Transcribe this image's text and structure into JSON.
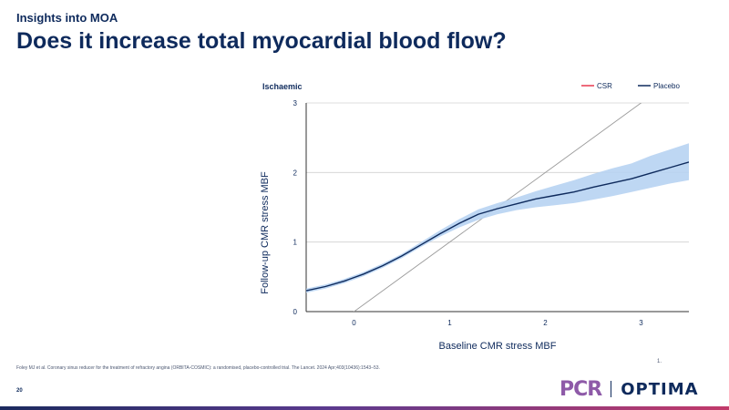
{
  "header": {
    "kicker": "Insights into MOA",
    "title": "Does it increase total myocardial blood flow?"
  },
  "chart_data": {
    "type": "line",
    "panel_label": "Ischaemic",
    "xlabel": "Baseline CMR stress MBF",
    "ylabel": "Follow-up CMR stress MBF",
    "xlim": [
      -0.5,
      3.5
    ],
    "ylim": [
      0,
      3
    ],
    "x_ticks": [
      "0",
      "1",
      "2",
      "3"
    ],
    "y_ticks": [
      "0",
      "1",
      "2",
      "3"
    ],
    "grid": "horizontal",
    "legend_position": "top-right",
    "legend": [
      {
        "name": "CSR",
        "color": "#e8384f"
      },
      {
        "name": "Placebo",
        "color": "#0e2a5c"
      }
    ],
    "identity_line": {
      "x": [
        -0.5,
        3.5
      ],
      "y": [
        -0.5,
        3.5
      ]
    },
    "series": [
      {
        "name": "Placebo",
        "color": "#0e2a5c",
        "band_color": "#b7d3f2",
        "x": [
          -0.5,
          -0.3,
          -0.1,
          0.1,
          0.3,
          0.5,
          0.7,
          0.9,
          1.1,
          1.3,
          1.5,
          1.7,
          1.9,
          2.1,
          2.3,
          2.5,
          2.7,
          2.9,
          3.1,
          3.3,
          3.5
        ],
        "y": [
          0.3,
          0.36,
          0.44,
          0.54,
          0.66,
          0.8,
          0.96,
          1.12,
          1.27,
          1.4,
          1.48,
          1.55,
          1.62,
          1.67,
          1.72,
          1.79,
          1.85,
          1.91,
          1.99,
          2.07,
          2.15
        ],
        "lower": [
          0.27,
          0.33,
          0.41,
          0.51,
          0.63,
          0.77,
          0.93,
          1.08,
          1.21,
          1.32,
          1.4,
          1.46,
          1.5,
          1.53,
          1.56,
          1.61,
          1.66,
          1.72,
          1.78,
          1.84,
          1.89
        ],
        "upper": [
          0.33,
          0.39,
          0.47,
          0.57,
          0.69,
          0.83,
          1.0,
          1.17,
          1.33,
          1.47,
          1.56,
          1.64,
          1.73,
          1.81,
          1.89,
          1.98,
          2.06,
          2.13,
          2.24,
          2.33,
          2.42
        ]
      }
    ]
  },
  "citation": "Foley MJ et al. Coronary sinus reducer for the treatment of refractory angina (ORBITA-COSMIC): a randomised, placebo-controlled trial. The Lancet. 2024 Apr;403(10436):1543–53.",
  "footnote": "1.",
  "page_number": "20",
  "logos": {
    "left": "PCR",
    "right": "OPTIMA"
  },
  "colors": {
    "navy": "#0e2a5c",
    "band": "#b7d3f2",
    "grid": "#d0d0d0",
    "identity": "#9a9a9a"
  }
}
